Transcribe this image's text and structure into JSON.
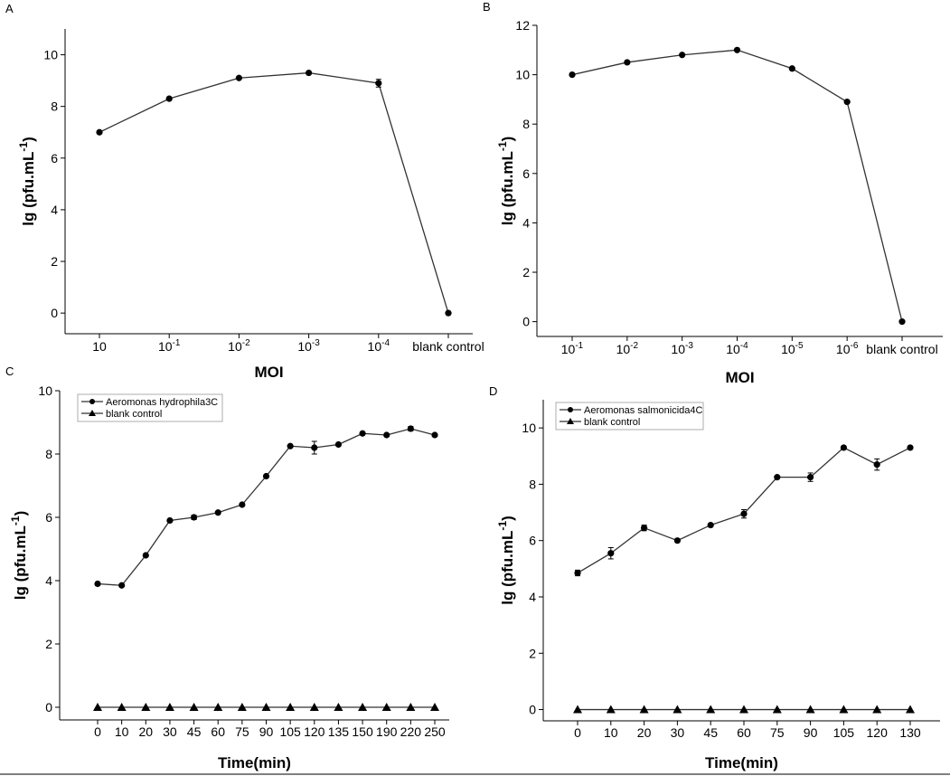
{
  "chart_data": [
    {
      "panel": "A",
      "type": "line",
      "xlabel": "MOI",
      "ylabel": "lg (pfu.mL-1)",
      "categories": [
        "10",
        "10-1",
        "10-2",
        "10-3",
        "10-4",
        "blank control"
      ],
      "ylim": [
        -0.8,
        11
      ],
      "yticks": [
        0,
        2,
        4,
        6,
        8,
        10
      ],
      "grid": false,
      "series": [
        {
          "values": [
            7.0,
            8.3,
            9.1,
            9.3,
            8.9,
            0
          ],
          "errors": [
            0,
            0,
            0,
            0,
            0.15,
            0
          ],
          "marker": "circle"
        }
      ]
    },
    {
      "panel": "B",
      "type": "line",
      "xlabel": "MOI",
      "ylabel": "lg (pfu.mL-1)",
      "categories": [
        "10-1",
        "10-2",
        "10-3",
        "10-4",
        "10-5",
        "10-6",
        "blank control"
      ],
      "ylim": [
        -0.6,
        12
      ],
      "yticks": [
        0,
        2,
        4,
        6,
        8,
        10,
        12
      ],
      "grid": false,
      "series": [
        {
          "values": [
            10.0,
            10.5,
            10.8,
            11.0,
            10.25,
            8.9,
            0
          ],
          "errors": [
            0,
            0,
            0,
            0,
            0,
            0,
            0
          ],
          "marker": "circle"
        }
      ]
    },
    {
      "panel": "C",
      "type": "line",
      "xlabel": "Time(min)",
      "ylabel": "lg (pfu.mL-1)",
      "categories": [
        "0",
        "10",
        "20",
        "30",
        "45",
        "60",
        "75",
        "90",
        "105",
        "120",
        "135",
        "150",
        "190",
        "220",
        "250"
      ],
      "ylim": [
        -0.4,
        10
      ],
      "yticks": [
        0,
        2,
        4,
        6,
        8,
        10
      ],
      "grid": false,
      "legend": "top-left",
      "series": [
        {
          "name": "Aeromonas hydrophila3C",
          "marker": "circle",
          "values": [
            3.9,
            3.85,
            4.8,
            5.9,
            6.0,
            6.15,
            6.4,
            7.3,
            8.25,
            8.2,
            8.3,
            8.65,
            8.6,
            8.8,
            8.6
          ],
          "errors": [
            0.05,
            0,
            0,
            0,
            0.07,
            0,
            0,
            0,
            0,
            0.2,
            0,
            0,
            0,
            0.07,
            0
          ]
        },
        {
          "name": "blank control",
          "marker": "triangle",
          "values": [
            0,
            0,
            0,
            0,
            0,
            0,
            0,
            0,
            0,
            0,
            0,
            0,
            0,
            0,
            0
          ],
          "errors": [
            0,
            0,
            0,
            0,
            0,
            0,
            0,
            0,
            0,
            0,
            0,
            0,
            0,
            0,
            0
          ]
        }
      ]
    },
    {
      "panel": "D",
      "type": "line",
      "xlabel": "Time(min)",
      "ylabel": "lg (pfu.mL-1)",
      "categories": [
        "0",
        "10",
        "20",
        "30",
        "45",
        "60",
        "75",
        "90",
        "105",
        "120",
        "130"
      ],
      "ylim": [
        -0.4,
        11
      ],
      "yticks": [
        0,
        2,
        4,
        6,
        8,
        10
      ],
      "grid": false,
      "legend": "top-left",
      "series": [
        {
          "name": "Aeromonas salmonicida4C",
          "marker": "circle",
          "values": [
            4.85,
            5.55,
            6.45,
            6.0,
            6.55,
            6.95,
            8.25,
            8.25,
            9.3,
            8.7,
            9.3
          ],
          "errors": [
            0.1,
            0.2,
            0.1,
            0,
            0,
            0.15,
            0,
            0.15,
            0,
            0.2,
            0
          ]
        },
        {
          "name": "blank control",
          "marker": "triangle",
          "values": [
            0,
            0,
            0,
            0,
            0,
            0,
            0,
            0,
            0,
            0,
            0
          ],
          "errors": [
            0,
            0,
            0,
            0,
            0,
            0,
            0,
            0,
            0,
            0,
            0
          ]
        }
      ]
    }
  ]
}
